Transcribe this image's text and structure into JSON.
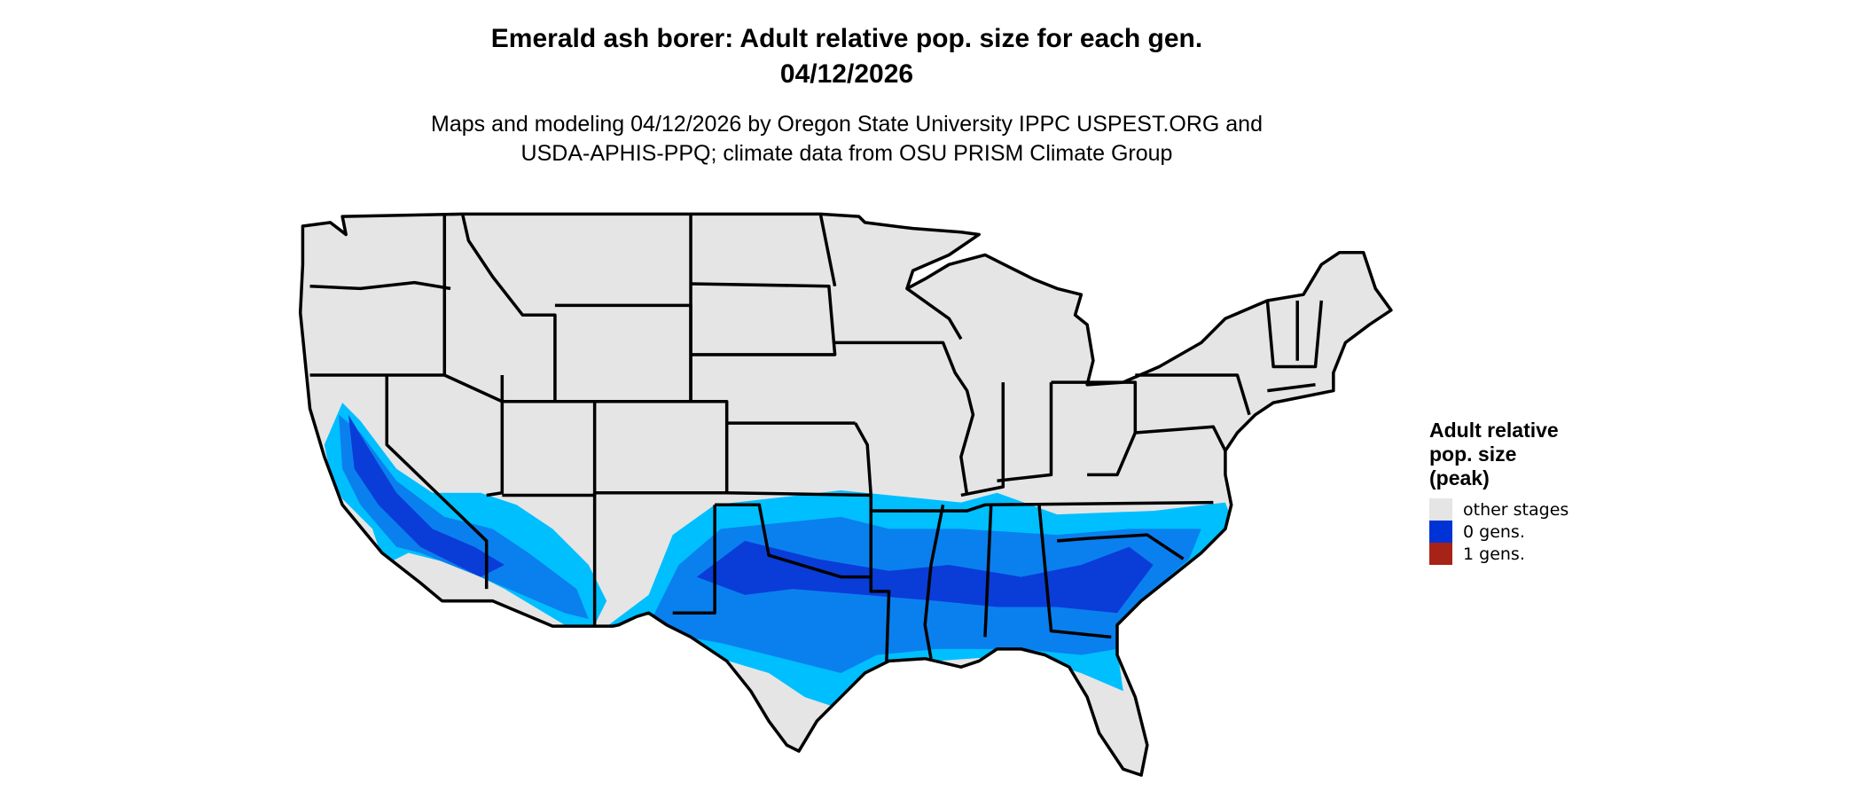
{
  "header": {
    "title": "Emerald ash borer: Adult relative pop. size for each gen.",
    "date": "04/12/2026",
    "subtitle_line1": "Maps and modeling 04/12/2026 by Oregon State University IPPC USPEST.ORG and",
    "subtitle_line2": "USDA-APHIS-PPQ; climate data from OSU PRISM Climate Group"
  },
  "legend": {
    "title_line1": "Adult relative",
    "title_line2": "pop. size",
    "title_line3": "(peak)",
    "items": [
      {
        "label": "other stages",
        "color": "#e5e5e5"
      },
      {
        "label": "0 gens.",
        "color": "#0033d6"
      },
      {
        "label": "1 gens.",
        "color": "#a82317"
      }
    ]
  },
  "map": {
    "background_color": "#e5e5e5",
    "shade_colors": [
      "#00bfff",
      "#0a80ee",
      "#0a3cd8"
    ]
  }
}
